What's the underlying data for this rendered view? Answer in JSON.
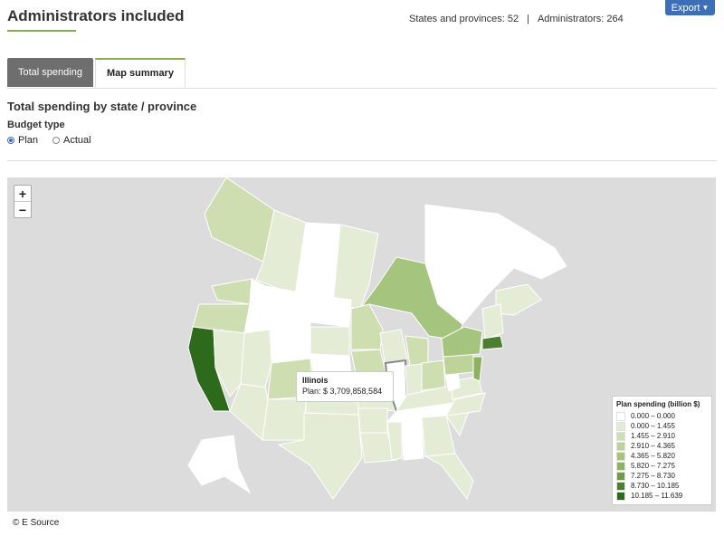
{
  "header": {
    "title": "Administrators included",
    "stats_states": "States and provinces: 52",
    "stats_separator": "|",
    "stats_admins": "Administrators: 264",
    "export_label": "Export",
    "export_icon": "chevron-down-icon"
  },
  "tabs": [
    {
      "label": "Total spending",
      "active": false
    },
    {
      "label": "Map summary",
      "active": true
    }
  ],
  "section": {
    "title": "Total spending by state / province",
    "budget_label": "Budget type",
    "options": [
      {
        "label": "Plan",
        "selected": true
      },
      {
        "label": "Actual",
        "selected": false
      }
    ]
  },
  "map": {
    "zoom_in": "+",
    "zoom_out": "−",
    "tooltip": {
      "name": "Illinois",
      "value": "Plan: $ 3,709,858,584"
    },
    "legend_title": "Plan spending (billion $)",
    "legend": [
      {
        "label": "0.000 – 0.000",
        "color": "#ffffff"
      },
      {
        "label": "0.000 – 1.455",
        "color": "#e4ecd5"
      },
      {
        "label": "1.455 – 2.910",
        "color": "#cfdeb1"
      },
      {
        "label": "2.910 – 4.365",
        "color": "#bdd399"
      },
      {
        "label": "4.365 – 5.820",
        "color": "#a5c47d"
      },
      {
        "label": "5.820 – 7.275",
        "color": "#8db25f"
      },
      {
        "label": "7.275 – 8.730",
        "color": "#6f9a46"
      },
      {
        "label": "8.730 – 10.185",
        "color": "#4b7f2f"
      },
      {
        "label": "10.185 – 11.639",
        "color": "#2e6a1c"
      }
    ]
  },
  "footer": {
    "copyright": "© E Source"
  }
}
